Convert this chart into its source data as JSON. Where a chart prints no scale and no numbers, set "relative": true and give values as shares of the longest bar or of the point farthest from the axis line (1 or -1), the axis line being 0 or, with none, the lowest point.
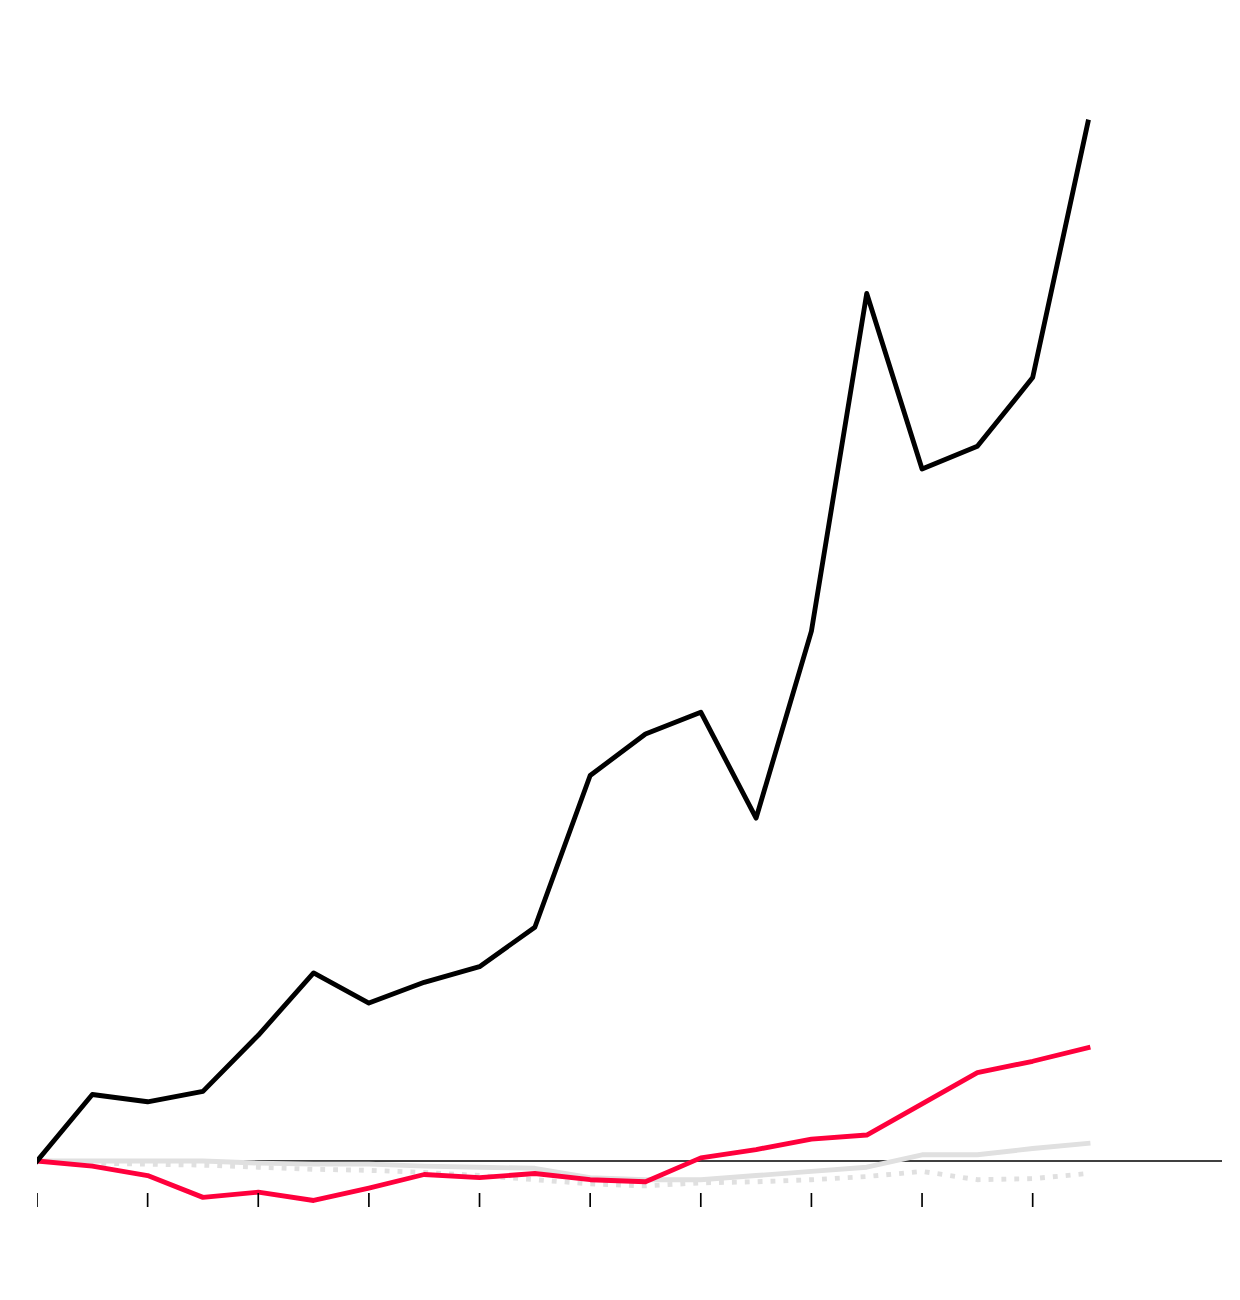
{
  "chart_data": {
    "type": "line",
    "relative": true,
    "legend": false,
    "marker": "none",
    "categories": [
      null,
      null,
      null,
      null,
      null,
      null,
      null,
      null,
      null,
      null,
      null,
      null,
      null,
      null,
      null,
      null,
      null,
      null,
      null,
      null
    ],
    "series": [
      {
        "color": "#e0e0e0",
        "line_style": "dotted",
        "values": [
          0,
          -0.002,
          -0.003,
          -0.004,
          -0.006,
          -0.008,
          -0.009,
          -0.011,
          -0.014,
          -0.018,
          -0.022,
          -0.024,
          -0.021,
          -0.02,
          -0.018,
          -0.015,
          -0.01,
          -0.018,
          -0.017,
          -0.012
        ]
      },
      {
        "color": "#e0e0e0",
        "line_style": "solid",
        "values": [
          0,
          0,
          0,
          0,
          -0.002,
          -0.003,
          -0.003,
          -0.005,
          -0.006,
          -0.007,
          -0.016,
          -0.018,
          -0.018,
          -0.014,
          -0.01,
          -0.006,
          0.006,
          0.006,
          0.012,
          0.017
        ]
      },
      {
        "color": "#ff003c",
        "line_style": "solid",
        "values": [
          0,
          -0.005,
          -0.014,
          -0.035,
          -0.03,
          -0.038,
          -0.026,
          -0.013,
          -0.016,
          -0.012,
          -0.018,
          -0.02,
          0.003,
          0.011,
          0.021,
          0.025,
          0.055,
          0.085,
          0.096,
          0.109
        ]
      },
      {
        "color": "#000000",
        "line_style": "solid",
        "values": [
          0,
          0.064,
          0.057,
          0.067,
          0.121,
          0.181,
          0.152,
          0.172,
          0.187,
          0.225,
          0.371,
          0.411,
          0.432,
          0.33,
          0.51,
          0.835,
          0.666,
          0.688,
          0.754,
          1
        ]
      }
    ]
  }
}
